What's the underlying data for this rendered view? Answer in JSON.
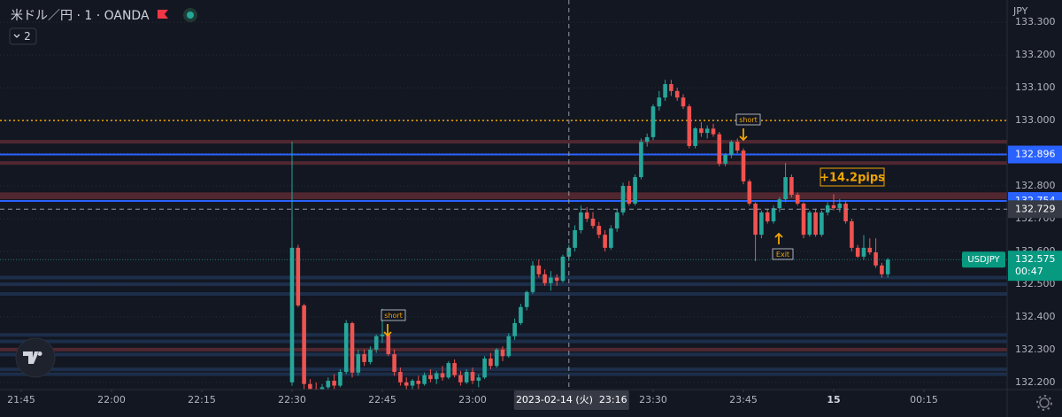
{
  "chart_data": {
    "type": "candlestick",
    "symbol_title": "米ドル／円 · 1 · OANDA",
    "indicator_count": "2",
    "currency": "JPY",
    "up_color": "#26a69a",
    "down_color": "#ef5350",
    "grid": true,
    "ylim": [
      132.178,
      133.368
    ],
    "yticks": [
      {
        "value": 132.2,
        "label": "132.200"
      },
      {
        "value": 132.3,
        "label": "132.300"
      },
      {
        "value": 132.4,
        "label": "132.400"
      },
      {
        "value": 132.5,
        "label": "132.500"
      },
      {
        "value": 132.6,
        "label": "132.600"
      },
      {
        "value": 132.7,
        "label": "132.700"
      },
      {
        "value": 132.8,
        "label": "132.800"
      },
      {
        "value": 132.9,
        "label": "132.900"
      },
      {
        "value": 133.0,
        "label": "133.000"
      },
      {
        "value": 133.1,
        "label": "133.100"
      },
      {
        "value": 133.2,
        "label": "133.200"
      },
      {
        "value": 133.3,
        "label": "133.300"
      }
    ],
    "xticks": [
      "21:45",
      "22:00",
      "22:15",
      "22:30",
      "22:45",
      "23:00",
      "23:30",
      "23:45",
      {
        "value": "00:00",
        "label": "15"
      },
      "00:15"
    ],
    "x": [
      "22:30",
      "22:31",
      "22:32",
      "22:33",
      "22:34",
      "22:35",
      "22:36",
      "22:37",
      "22:38",
      "22:39",
      "22:40",
      "22:41",
      "22:42",
      "22:43",
      "22:44",
      "22:45",
      "22:46",
      "22:47",
      "22:48",
      "22:49",
      "22:50",
      "22:51",
      "22:52",
      "22:53",
      "22:54",
      "22:55",
      "22:56",
      "22:57",
      "22:58",
      "22:59",
      "23:00",
      "23:01",
      "23:02",
      "23:03",
      "23:04",
      "23:05",
      "23:06",
      "23:07",
      "23:08",
      "23:09",
      "23:10",
      "23:11",
      "23:12",
      "23:13",
      "23:14",
      "23:15",
      "23:16",
      "23:17",
      "23:18",
      "23:19",
      "23:20",
      "23:21",
      "23:22",
      "23:23",
      "23:24",
      "23:25",
      "23:26",
      "23:27",
      "23:28",
      "23:29",
      "23:30",
      "23:31",
      "23:32",
      "23:33",
      "23:34",
      "23:35",
      "23:36",
      "23:37",
      "23:38",
      "23:39",
      "23:40",
      "23:41",
      "23:42",
      "23:43",
      "23:44",
      "23:45",
      "23:46",
      "23:47",
      "23:48",
      "23:49",
      "23:50",
      "23:51",
      "23:52",
      "23:53",
      "23:54",
      "23:55",
      "23:56",
      "23:57",
      "23:58",
      "23:59",
      "00:00",
      "00:01",
      "00:02",
      "00:03",
      "00:04",
      "00:05",
      "00:06",
      "00:07",
      "00:08",
      "00:09"
    ],
    "open": [
      132.2,
      132.611,
      132.435,
      132.195,
      132.18,
      132.17,
      132.185,
      132.205,
      132.19,
      132.232,
      132.381,
      132.23,
      132.286,
      132.262,
      132.3,
      132.341,
      132.346,
      132.286,
      132.232,
      132.2,
      132.19,
      132.205,
      132.195,
      132.222,
      132.21,
      132.228,
      132.215,
      132.259,
      132.222,
      132.2,
      132.232,
      132.205,
      132.215,
      132.273,
      132.25,
      132.3,
      132.28,
      132.341,
      132.381,
      132.43,
      132.476,
      132.557,
      132.53,
      132.503,
      132.52,
      132.51,
      132.584,
      132.611,
      132.665,
      132.719,
      132.7,
      132.678,
      132.651,
      132.611,
      132.67,
      132.719,
      132.8,
      132.746,
      132.827,
      132.935,
      132.949,
      133.043,
      133.07,
      133.111,
      133.09,
      133.07,
      133.043,
      132.922,
      132.976,
      132.962,
      132.975,
      132.958,
      132.868,
      132.895,
      132.935,
      132.908,
      132.814,
      132.746,
      132.651,
      132.719,
      132.692,
      132.732,
      132.759,
      132.827,
      132.773,
      132.746,
      132.651,
      132.719,
      132.651,
      132.719,
      132.741,
      132.732,
      132.746,
      132.692,
      132.611,
      132.584,
      132.611,
      132.597,
      132.557,
      132.53
    ],
    "high": [
      132.935,
      132.62,
      132.44,
      132.21,
      132.2,
      132.195,
      132.215,
      132.225,
      132.24,
      132.39,
      132.385,
      132.3,
      132.3,
      132.31,
      132.346,
      132.425,
      132.35,
      132.3,
      132.245,
      132.215,
      132.21,
      132.22,
      132.23,
      132.24,
      132.235,
      132.25,
      132.265,
      132.27,
      132.235,
      132.24,
      132.245,
      132.225,
      132.28,
      132.29,
      132.305,
      132.31,
      132.35,
      132.395,
      132.44,
      132.48,
      132.57,
      132.575,
      132.545,
      132.54,
      132.53,
      132.59,
      132.62,
      132.68,
      132.74,
      132.735,
      132.72,
      132.69,
      132.665,
      132.68,
      132.73,
      132.81,
      132.815,
      132.835,
      132.945,
      132.96,
      133.05,
      133.09,
      133.124,
      133.124,
      133.1,
      133.08,
      133.05,
      132.98,
      132.995,
      132.985,
      132.99,
      132.965,
      132.9,
      132.94,
      132.945,
      132.915,
      132.82,
      132.75,
      132.725,
      132.73,
      132.74,
      132.765,
      132.87,
      132.835,
      132.78,
      132.75,
      132.725,
      132.73,
      132.725,
      132.75,
      132.775,
      132.76,
      132.755,
      132.7,
      132.62,
      132.65,
      132.64,
      132.64,
      132.565,
      132.58
    ],
    "low": [
      132.19,
      132.43,
      132.18,
      132.16,
      132.15,
      132.15,
      132.17,
      132.18,
      132.185,
      132.225,
      132.215,
      132.22,
      132.25,
      132.255,
      132.29,
      132.32,
      132.28,
      132.22,
      132.19,
      132.17,
      132.175,
      132.18,
      132.19,
      132.2,
      132.195,
      132.205,
      132.21,
      132.215,
      132.19,
      132.195,
      132.195,
      132.185,
      132.21,
      132.24,
      132.245,
      132.265,
      132.275,
      132.33,
      132.375,
      132.42,
      132.47,
      132.52,
      132.495,
      132.48,
      132.495,
      132.505,
      132.57,
      132.6,
      132.655,
      132.69,
      132.67,
      132.64,
      132.6,
      132.605,
      132.66,
      132.71,
      132.74,
      132.74,
      132.82,
      132.92,
      132.94,
      133.03,
      133.06,
      133.075,
      133.06,
      133.035,
      132.915,
      132.915,
      132.95,
      132.945,
      132.95,
      132.86,
      132.86,
      132.885,
      132.9,
      132.805,
      132.74,
      132.57,
      132.64,
      132.685,
      132.685,
      132.72,
      132.75,
      132.765,
      132.74,
      132.64,
      132.645,
      132.645,
      132.645,
      132.71,
      132.725,
      132.72,
      132.685,
      132.6,
      132.58,
      132.575,
      132.59,
      132.55,
      132.52,
      132.52
    ],
    "close": [
      132.611,
      132.435,
      132.195,
      132.18,
      132.17,
      132.185,
      132.205,
      132.19,
      132.232,
      132.381,
      132.23,
      132.286,
      132.262,
      132.3,
      132.341,
      132.346,
      132.286,
      132.232,
      132.2,
      132.19,
      132.205,
      132.195,
      132.222,
      132.21,
      132.228,
      132.215,
      132.259,
      132.222,
      132.2,
      132.232,
      132.205,
      132.215,
      132.273,
      132.25,
      132.3,
      132.28,
      132.341,
      132.381,
      132.43,
      132.476,
      132.557,
      132.53,
      132.503,
      132.52,
      132.51,
      132.584,
      132.611,
      132.665,
      132.719,
      132.7,
      132.678,
      132.651,
      132.611,
      132.67,
      132.719,
      132.8,
      132.746,
      132.827,
      132.935,
      132.949,
      133.043,
      133.07,
      133.111,
      133.09,
      133.07,
      133.043,
      132.922,
      132.976,
      132.962,
      132.975,
      132.958,
      132.868,
      132.895,
      132.935,
      132.908,
      132.814,
      132.746,
      132.651,
      132.719,
      132.692,
      132.732,
      132.759,
      132.827,
      132.773,
      132.746,
      132.651,
      132.719,
      132.651,
      132.719,
      132.741,
      132.732,
      132.746,
      132.692,
      132.611,
      132.584,
      132.611,
      132.597,
      132.557,
      132.53,
      132.575
    ],
    "hlines": [
      {
        "value": 133.0,
        "color": "#f0a500",
        "style": "dotted"
      },
      {
        "value": 132.935,
        "color": "#5c2a33",
        "style": "band"
      },
      {
        "value": 132.87,
        "color": "#5c2a33",
        "style": "band"
      },
      {
        "value": 132.775,
        "color": "#5c2a33",
        "style": "band"
      },
      {
        "value": 132.765,
        "color": "#5c2a33",
        "style": "band"
      },
      {
        "value": 132.3,
        "color": "#5c2a33",
        "style": "band"
      },
      {
        "value": 132.52,
        "color": "#1f3350",
        "style": "band"
      },
      {
        "value": 132.5,
        "color": "#1f3350",
        "style": "band"
      },
      {
        "value": 132.47,
        "color": "#1f3350",
        "style": "band"
      },
      {
        "value": 132.345,
        "color": "#1f3350",
        "style": "band"
      },
      {
        "value": 132.325,
        "color": "#1f3350",
        "style": "band"
      },
      {
        "value": 132.285,
        "color": "#1f3350",
        "style": "band"
      },
      {
        "value": 132.24,
        "color": "#1f3350",
        "style": "band"
      },
      {
        "value": 132.225,
        "color": "#1f3350",
        "style": "band"
      },
      {
        "value": 132.754,
        "color": "#2962ff",
        "style": "solid",
        "axis_label": true
      },
      {
        "value": 132.896,
        "color": "#2962ff",
        "style": "solid",
        "axis_label": true
      }
    ],
    "crosshair": {
      "x": "23:16",
      "price": 132.729,
      "time_label": "2023-02-14 (火)  23:16"
    },
    "last": {
      "symbol": "USDJPY",
      "price": 132.575,
      "countdown": "00:47"
    },
    "annotations": [
      {
        "text": "short"
      },
      {
        "text": "short"
      },
      {
        "text": "Exit"
      },
      {
        "text": "+14.2pips"
      }
    ]
  }
}
